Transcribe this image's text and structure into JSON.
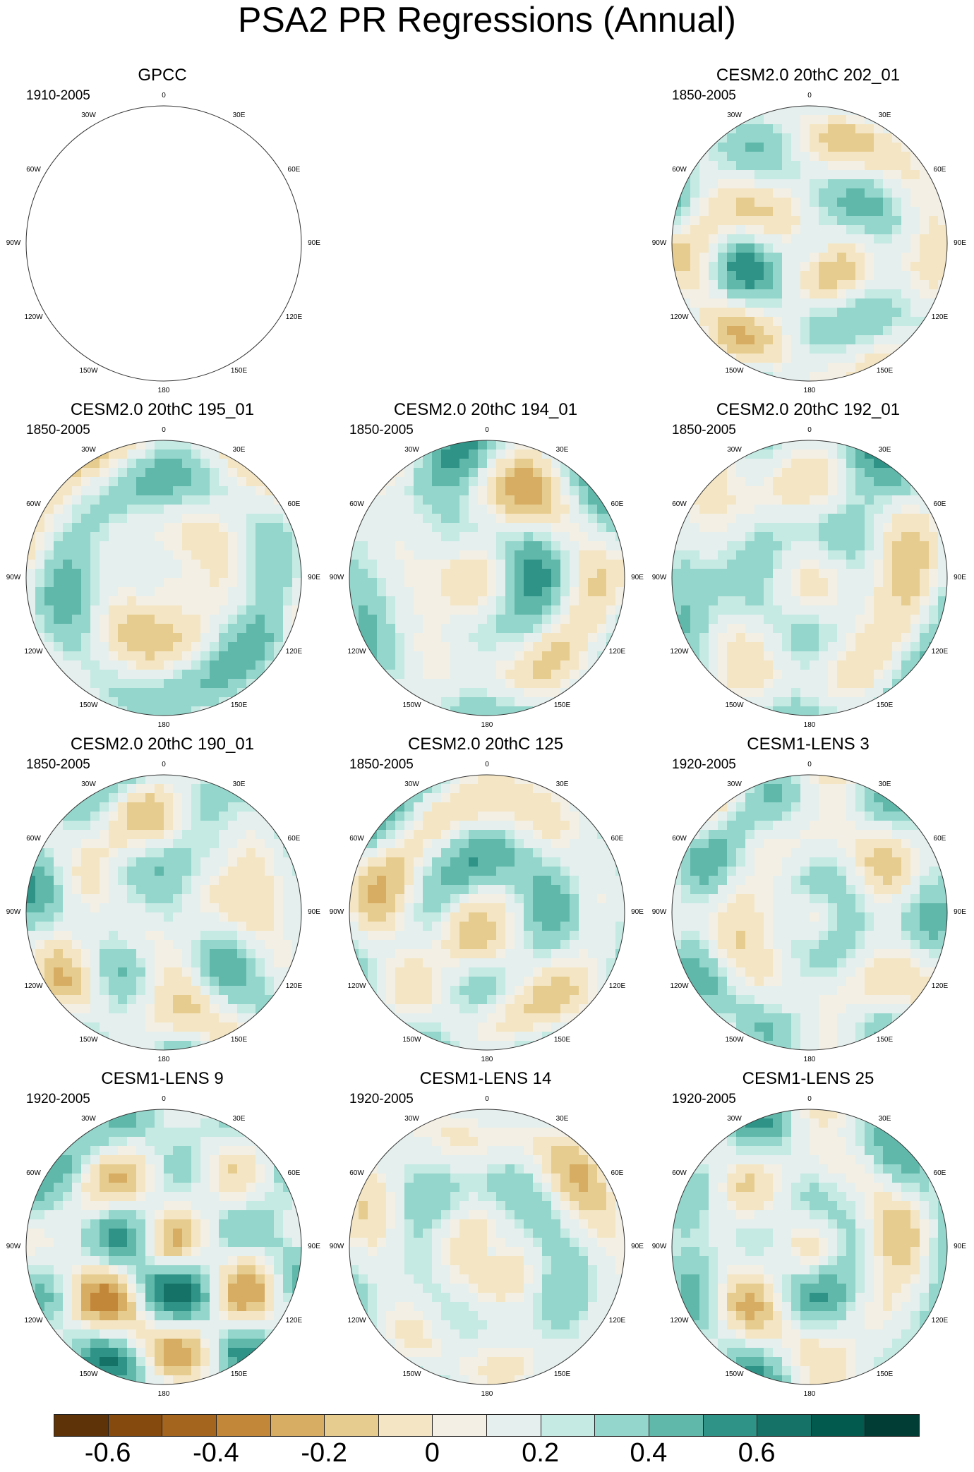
{
  "title": "PSA2 PR Regressions (Annual)",
  "panels": [
    {
      "name": "GPCC",
      "period": "1910-2005",
      "col": 0,
      "row": 0,
      "mode": "land"
    },
    {
      "name": "CESM2.0 20thC 202_01",
      "period": "1850-2005",
      "col": 2,
      "row": 0,
      "mode": "field",
      "seed": 3
    },
    {
      "name": "CESM2.0 20thC 195_01",
      "period": "1850-2005",
      "col": 0,
      "row": 1,
      "mode": "field",
      "seed": 7
    },
    {
      "name": "CESM2.0 20thC 194_01",
      "period": "1850-2005",
      "col": 1,
      "row": 1,
      "mode": "field",
      "seed": 11
    },
    {
      "name": "CESM2.0 20thC 192_01",
      "period": "1850-2005",
      "col": 2,
      "row": 1,
      "mode": "field",
      "seed": 17
    },
    {
      "name": "CESM2.0 20thC 190_01",
      "period": "1850-2005",
      "col": 0,
      "row": 2,
      "mode": "field",
      "seed": 23
    },
    {
      "name": "CESM2.0 20thC 125",
      "period": "1850-2005",
      "col": 1,
      "row": 2,
      "mode": "field",
      "seed": 29
    },
    {
      "name": "CESM1-LENS 3",
      "period": "1920-2005",
      "col": 2,
      "row": 2,
      "mode": "field",
      "seed": 31
    },
    {
      "name": "CESM1-LENS 9",
      "period": "1920-2005",
      "col": 0,
      "row": 3,
      "mode": "field",
      "seed": 37
    },
    {
      "name": "CESM1-LENS 14",
      "period": "1920-2005",
      "col": 1,
      "row": 3,
      "mode": "field",
      "seed": 41
    },
    {
      "name": "CESM1-LENS 25",
      "period": "1920-2005",
      "col": 2,
      "row": 3,
      "mode": "field",
      "seed": 43
    }
  ],
  "longitude_labels": [
    "0",
    "30E",
    "60E",
    "90E",
    "120E",
    "150E",
    "180",
    "150W",
    "120W",
    "90W",
    "60W",
    "30W"
  ],
  "chart_data": {
    "type": "heatmap",
    "projection": "south polar stereographic",
    "colorbar": {
      "levels": [
        -0.7,
        -0.6,
        -0.5,
        -0.4,
        -0.3,
        -0.2,
        -0.1,
        -0.05,
        0.05,
        0.1,
        0.2,
        0.3,
        0.4,
        0.5,
        0.6,
        0.7
      ],
      "colors": [
        "#5e3307",
        "#854b0e",
        "#a4651f",
        "#c3873a",
        "#d6ad62",
        "#e7cc8f",
        "#f4e6c4",
        "#f4efe4",
        "#e4efee",
        "#c5e9e3",
        "#94d6cb",
        "#60b8ab",
        "#2f9487",
        "#147366",
        "#02594e",
        "#013d34"
      ],
      "tick_labels": [
        "-0.6",
        "-0.4",
        "-0.2",
        "0",
        "0.2",
        "0.4",
        "0.6"
      ],
      "tick_values": [
        -0.6,
        -0.4,
        -0.2,
        0,
        0.2,
        0.4,
        0.6
      ]
    }
  }
}
